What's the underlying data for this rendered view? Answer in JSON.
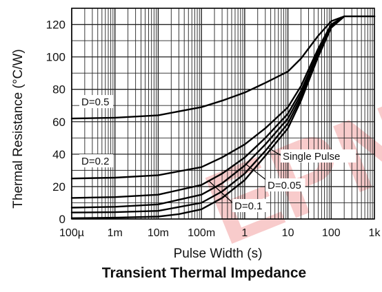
{
  "chart_data": {
    "type": "line",
    "title": "Transient Thermal Impedance",
    "xlabel": "Pulse Width (s)",
    "ylabel": "Thermal Resistance (°C/W)",
    "xscale": "log",
    "xlim": [
      0.0001,
      1000
    ],
    "ylim": [
      0,
      130
    ],
    "grid": true,
    "x_ticks": [
      0.0001,
      0.001,
      0.01,
      0.1,
      1,
      10,
      100,
      1000
    ],
    "x_tick_labels": [
      "100µ",
      "1m",
      "10m",
      "100m",
      "1",
      "10",
      "100",
      "1k"
    ],
    "y_ticks": [
      0,
      20,
      40,
      60,
      80,
      100,
      120
    ],
    "y_tick_labels": [
      "0",
      "20",
      "40",
      "60",
      "80",
      "100",
      "120"
    ],
    "series": [
      {
        "name": "D=0.5",
        "x": [
          0.0001,
          0.001,
          0.01,
          0.1,
          0.3,
          1,
          3,
          10,
          20,
          50,
          100,
          200,
          1000
        ],
        "y": [
          62,
          62.5,
          64,
          69,
          73,
          78,
          84,
          91,
          99,
          113,
          122,
          125,
          125
        ]
      },
      {
        "name": "D=0.2",
        "x": [
          0.0001,
          0.001,
          0.01,
          0.1,
          0.3,
          1,
          3,
          10,
          20,
          50,
          100,
          200,
          1000
        ],
        "y": [
          25,
          25.5,
          27,
          32,
          38,
          46,
          56,
          69,
          82,
          105,
          120,
          125,
          125
        ]
      },
      {
        "name": "",
        "x": [
          0.0001,
          0.001,
          0.01,
          0.1,
          0.3,
          1,
          3,
          10,
          20,
          50,
          100,
          200,
          1000
        ],
        "y": [
          13,
          13.5,
          15,
          21,
          28,
          38,
          50,
          65,
          79,
          103,
          119,
          125,
          125
        ]
      },
      {
        "name": "D=0.1",
        "x": [
          0.0001,
          0.001,
          0.01,
          0.1,
          0.3,
          1,
          3,
          10,
          20,
          50,
          100,
          200,
          1000
        ],
        "y": [
          7,
          7.5,
          9,
          15,
          22,
          33,
          46,
          62,
          77,
          102,
          119,
          125,
          125
        ]
      },
      {
        "name": "D=0.05",
        "x": [
          0.0001,
          0.001,
          0.01,
          0.1,
          0.3,
          1,
          3,
          10,
          20,
          50,
          100,
          200,
          1000
        ],
        "y": [
          4,
          4.2,
          5,
          10,
          17,
          28,
          42,
          59,
          75,
          101,
          118,
          125,
          125
        ]
      },
      {
        "name": "Single Pulse",
        "x": [
          0.0001,
          0.001,
          0.01,
          0.03,
          0.1,
          0.3,
          1,
          3,
          10,
          20,
          50,
          100,
          200,
          1000
        ],
        "y": [
          0.5,
          0.8,
          1.5,
          3,
          6,
          13,
          24,
          39,
          56,
          73,
          100,
          118,
          125,
          125
        ]
      }
    ],
    "annotations": [
      {
        "text": "D=0.5"
      },
      {
        "text": "D=0.2"
      },
      {
        "text": "Single Pulse"
      },
      {
        "text": "D=0.05"
      },
      {
        "text": "D=0.1"
      }
    ]
  },
  "watermark": {
    "text": "EPN",
    "color": "#f2a0a0"
  },
  "colors": {
    "line": "#000000",
    "grid": "#222222",
    "background": "#ffffff"
  }
}
